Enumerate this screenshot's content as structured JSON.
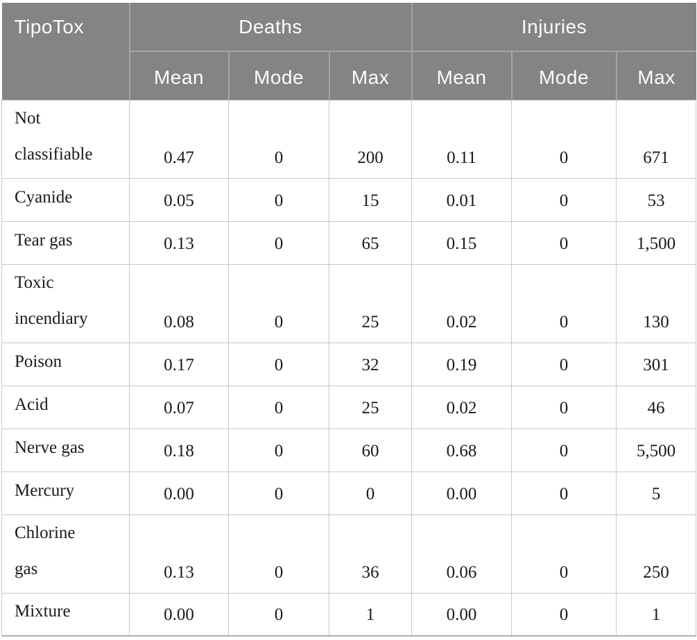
{
  "colors": {
    "header_bg": "#848484",
    "header_divider": "#a5a5a5",
    "header_text": "#fcfcfc",
    "grid_line": "#c8c8c8",
    "bottom_border": "#aeaeae",
    "body_text": "#1a1a1a"
  },
  "table": {
    "corner_header": "TipoTox",
    "column_groups": [
      {
        "label": "Deaths",
        "sub_columns": [
          "Mean",
          "Mode",
          "Max"
        ]
      },
      {
        "label": "Injuries",
        "sub_columns": [
          "Mean",
          "Mode",
          "Max"
        ]
      }
    ],
    "rows": [
      {
        "label_lines": [
          "Not",
          "classifiable"
        ],
        "values": [
          "0.47",
          "0",
          "200",
          "0.11",
          "0",
          "671"
        ]
      },
      {
        "label_lines": [
          "Cyanide"
        ],
        "values": [
          "0.05",
          "0",
          "15",
          "0.01",
          "0",
          "53"
        ]
      },
      {
        "label_lines": [
          "Tear gas"
        ],
        "values": [
          "0.13",
          "0",
          "65",
          "0.15",
          "0",
          "1,500"
        ]
      },
      {
        "label_lines": [
          "Toxic",
          "incendiary"
        ],
        "values": [
          "0.08",
          "0",
          "25",
          "0.02",
          "0",
          "130"
        ]
      },
      {
        "label_lines": [
          "Poison"
        ],
        "values": [
          "0.17",
          "0",
          "32",
          "0.19",
          "0",
          "301"
        ]
      },
      {
        "label_lines": [
          "Acid"
        ],
        "values": [
          "0.07",
          "0",
          "25",
          "0.02",
          "0",
          "46"
        ]
      },
      {
        "label_lines": [
          "Nerve gas"
        ],
        "values": [
          "0.18",
          "0",
          "60",
          "0.68",
          "0",
          "5,500"
        ]
      },
      {
        "label_lines": [
          "Mercury"
        ],
        "values": [
          "0.00",
          "0",
          "0",
          "0.00",
          "0",
          "5"
        ]
      },
      {
        "label_lines": [
          "Chlorine",
          "gas"
        ],
        "values": [
          "0.13",
          "0",
          "36",
          "0.06",
          "0",
          "250"
        ]
      },
      {
        "label_lines": [
          "Mixture"
        ],
        "values": [
          "0.00",
          "0",
          "1",
          "0.00",
          "0",
          "1"
        ]
      }
    ]
  }
}
